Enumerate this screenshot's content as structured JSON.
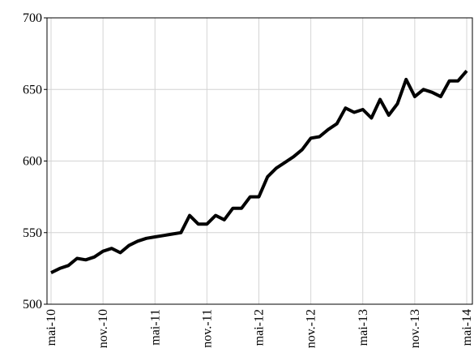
{
  "chart_data": {
    "type": "line",
    "categories": [
      "mai-10",
      null,
      null,
      null,
      null,
      null,
      "nov.-10",
      null,
      null,
      null,
      null,
      null,
      "mai-11",
      null,
      null,
      null,
      null,
      null,
      "nov.-11",
      null,
      null,
      null,
      null,
      null,
      "mai-12",
      null,
      null,
      null,
      null,
      null,
      "nov.-12",
      null,
      null,
      null,
      null,
      null,
      "mai-13",
      null,
      null,
      null,
      null,
      null,
      "nov.-13",
      null,
      null,
      null,
      null,
      null,
      "mai-14"
    ],
    "series": [
      {
        "color": "#000000",
        "values": [
          522,
          525,
          527,
          532,
          531,
          533,
          537,
          539,
          536,
          541,
          544,
          546,
          547,
          548,
          549,
          550,
          562,
          556,
          556,
          562,
          559,
          567,
          567,
          575,
          575,
          589,
          595,
          599,
          603,
          608,
          616,
          617,
          622,
          626,
          637,
          634,
          636,
          630,
          643,
          632,
          640,
          657,
          645,
          650,
          648,
          645,
          656,
          656,
          663
        ]
      }
    ],
    "ylim": [
      500,
      700
    ],
    "yticks": [
      500,
      550,
      600,
      650,
      700
    ],
    "grid": true
  }
}
